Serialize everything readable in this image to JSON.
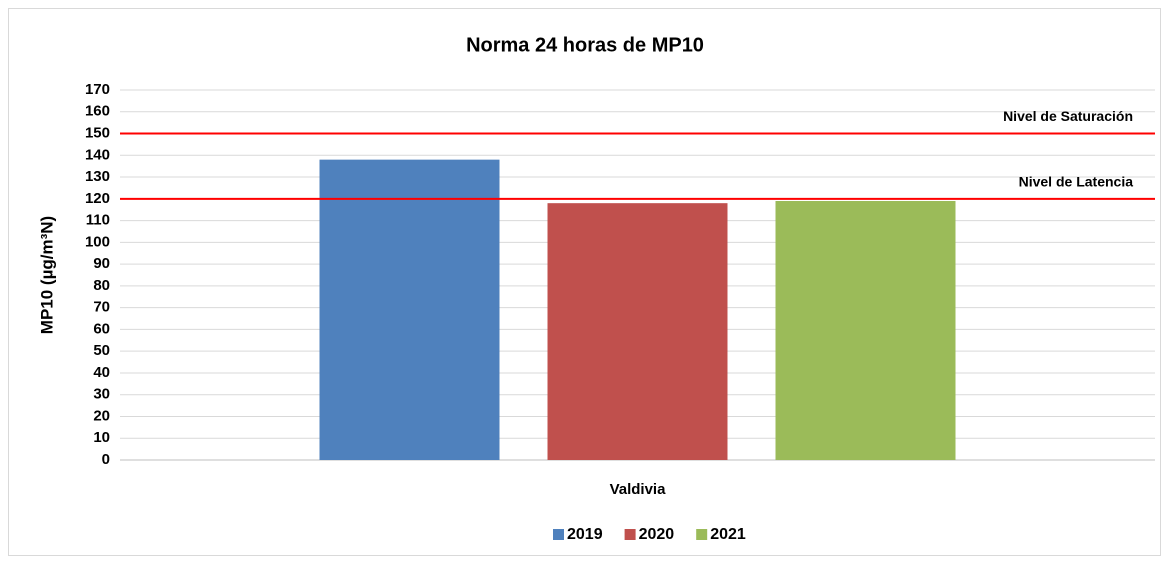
{
  "chart_data": {
    "type": "bar",
    "title": "Norma  24 horas de MP10",
    "y_label": "MP10 (µg/m³N)",
    "categories": [
      "Valdivia"
    ],
    "series": [
      {
        "name": "2019",
        "color": "#4f81bd",
        "values": [
          138
        ]
      },
      {
        "name": "2020",
        "color": "#c0504d",
        "values": [
          118
        ]
      },
      {
        "name": "2021",
        "color": "#9bbb59",
        "values": [
          119
        ]
      }
    ],
    "reference_lines": [
      {
        "label": "Nivel de Saturación",
        "value": 150,
        "color": "#ff0000"
      },
      {
        "label": "Nivel de Latencia",
        "value": 120,
        "color": "#ff0000"
      }
    ],
    "ylim": [
      0,
      170
    ],
    "yticks": [
      0,
      10,
      20,
      30,
      40,
      50,
      60,
      70,
      80,
      90,
      100,
      110,
      120,
      130,
      140,
      150,
      160,
      170
    ],
    "grid": true,
    "legend": "bottom"
  }
}
